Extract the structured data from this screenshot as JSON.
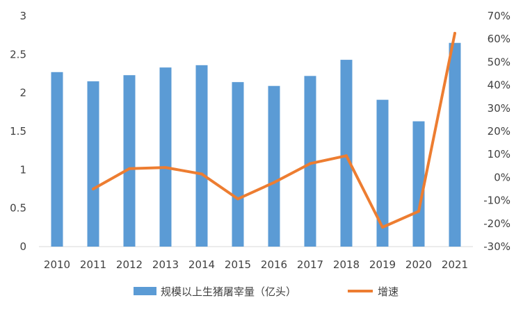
{
  "chart_data": {
    "type": "bar",
    "categories": [
      "2010",
      "2011",
      "2012",
      "2013",
      "2014",
      "2015",
      "2016",
      "2017",
      "2018",
      "2019",
      "2020",
      "2021"
    ],
    "series": [
      {
        "name": "规模以上生猪屠宰量（亿头）",
        "type": "bar",
        "axis": "left",
        "color": "#5B9BD5",
        "values": [
          2.27,
          2.15,
          2.23,
          2.33,
          2.36,
          2.14,
          2.09,
          2.22,
          2.43,
          1.91,
          1.63,
          2.65
        ]
      },
      {
        "name": "增速",
        "type": "line",
        "axis": "right",
        "color": "#ED7D31",
        "values": [
          null,
          -5.0,
          3.8,
          4.3,
          1.5,
          -9.3,
          -2.2,
          6.0,
          9.4,
          -21.6,
          -14.7,
          62.5
        ]
      }
    ],
    "left_axis": {
      "ylim": [
        0,
        3
      ],
      "ticks": [
        0,
        0.5,
        1,
        1.5,
        2,
        2.5,
        3
      ],
      "tick_labels": [
        "0",
        "0.5",
        "1",
        "1.5",
        "2",
        "2.5",
        "3"
      ]
    },
    "right_axis": {
      "ylim": [
        -30,
        70
      ],
      "ticks": [
        -30,
        -20,
        -10,
        0,
        10,
        20,
        30,
        40,
        50,
        60,
        70
      ],
      "tick_labels": [
        "-30%",
        "-20%",
        "-10%",
        "0%",
        "10%",
        "20%",
        "30%",
        "40%",
        "50%",
        "60%",
        "70%"
      ]
    },
    "grid": false,
    "legend_position": "bottom",
    "legend": [
      {
        "label": "规模以上生猪屠宰量（亿头）",
        "kind": "bar",
        "color": "#5B9BD5"
      },
      {
        "label": "增速",
        "kind": "line",
        "color": "#ED7D31"
      }
    ]
  }
}
